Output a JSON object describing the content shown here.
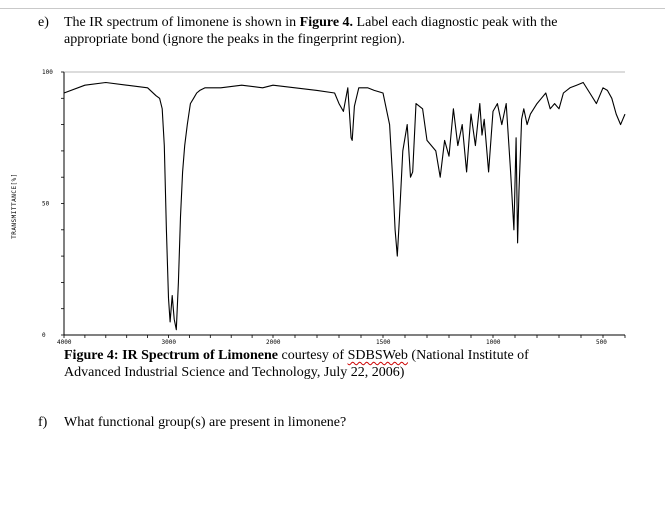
{
  "question_e": {
    "number": "e)",
    "line1_pre": "The IR spectrum of limonene is shown in ",
    "line1_bold": "Figure 4.",
    "line1_post": " Label each diagnostic peak with the",
    "line2": "appropriate bond (ignore the peaks in the fingerprint region)."
  },
  "chart_data": {
    "type": "line",
    "title": "",
    "xlabel": "",
    "ylabel": "TRANSMITTANCE[%]",
    "x_ticks": [
      "4000",
      "3000",
      "2000",
      "1500",
      "1000",
      "500"
    ],
    "y_ticks": [
      "100",
      "50",
      "0"
    ],
    "xlim": [
      4000,
      400
    ],
    "ylim": [
      0,
      100
    ],
    "grid": false,
    "series": [
      {
        "x": [
          4000,
          3800,
          3600,
          3400,
          3200,
          3120,
          3085,
          3060,
          3040,
          3020,
          3000,
          2985,
          2965,
          2945,
          2925,
          2905,
          2885,
          2865,
          2845,
          2820,
          2790,
          2760,
          2730,
          2700,
          2650,
          2500,
          2300,
          2100,
          2000,
          1900,
          1800,
          1720,
          1700,
          1680,
          1660,
          1645,
          1640,
          1630,
          1610,
          1570,
          1540,
          1500,
          1470,
          1455,
          1445,
          1435,
          1425,
          1410,
          1390,
          1375,
          1365,
          1350,
          1320,
          1300,
          1260,
          1240,
          1220,
          1200,
          1180,
          1160,
          1140,
          1120,
          1100,
          1080,
          1060,
          1050,
          1040,
          1020,
          1000,
          980,
          960,
          940,
          920,
          905,
          895,
          888,
          882,
          875,
          870,
          860,
          845,
          830,
          800,
          780,
          760,
          740,
          720,
          700,
          680,
          650,
          620,
          590,
          560,
          530,
          500,
          480,
          460,
          440,
          420,
          410,
          400
        ],
        "y": [
          92,
          95,
          96,
          95,
          94,
          91,
          90,
          86,
          72,
          40,
          14,
          5,
          15,
          6,
          2,
          20,
          45,
          62,
          72,
          80,
          88,
          90,
          92,
          93,
          94,
          94,
          95,
          94,
          95,
          94,
          93,
          92,
          88,
          85,
          94,
          75,
          74,
          87,
          94,
          94,
          93,
          92,
          80,
          58,
          40,
          30,
          45,
          70,
          80,
          60,
          62,
          88,
          86,
          74,
          70,
          60,
          74,
          68,
          86,
          72,
          80,
          62,
          84,
          72,
          88,
          76,
          82,
          62,
          85,
          88,
          80,
          88,
          62,
          40,
          75,
          35,
          55,
          70,
          82,
          86,
          80,
          84,
          88,
          90,
          92,
          86,
          88,
          86,
          92,
          94,
          95,
          96,
          92,
          88,
          94,
          93,
          90,
          84,
          80,
          82,
          84
        ]
      }
    ]
  },
  "figure_caption": {
    "bold": "Figure 4: IR Spectrum of Limonene",
    "pre": " courtesy of ",
    "link": "SDBSWeb",
    "post": " (National Institute of",
    "line2": "Advanced Industrial Science and Technology, July 22, 2006)"
  },
  "question_f": {
    "number": "f)",
    "text": "What functional group(s) are present in limonene?"
  }
}
